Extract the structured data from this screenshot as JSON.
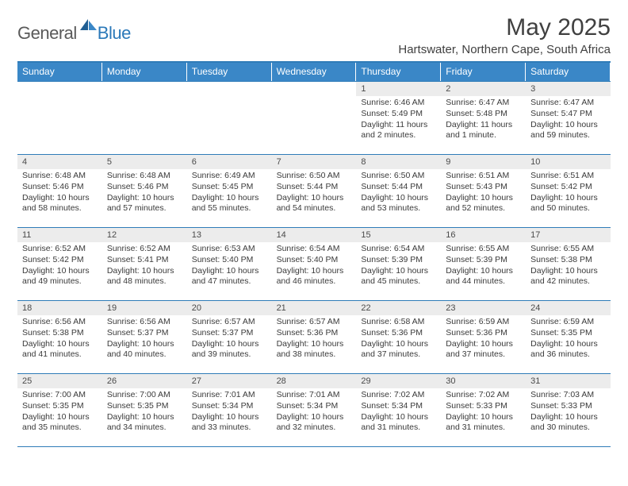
{
  "brand": {
    "general": "General",
    "blue": "Blue"
  },
  "title": "May 2025",
  "location": "Hartswater, Northern Cape, South Africa",
  "colors": {
    "header_bg": "#3a87c7",
    "rule": "#2f7cb8",
    "daynum_bg": "#ececec",
    "text": "#383838",
    "brand_gray": "#5a5a5a",
    "brand_blue": "#2b79b9"
  },
  "dow": [
    "Sunday",
    "Monday",
    "Tuesday",
    "Wednesday",
    "Thursday",
    "Friday",
    "Saturday"
  ],
  "weeks": [
    [
      null,
      null,
      null,
      null,
      {
        "n": "1",
        "sr": "6:46 AM",
        "ss": "5:49 PM",
        "dl": "11 hours and 2 minutes."
      },
      {
        "n": "2",
        "sr": "6:47 AM",
        "ss": "5:48 PM",
        "dl": "11 hours and 1 minute."
      },
      {
        "n": "3",
        "sr": "6:47 AM",
        "ss": "5:47 PM",
        "dl": "10 hours and 59 minutes."
      }
    ],
    [
      {
        "n": "4",
        "sr": "6:48 AM",
        "ss": "5:46 PM",
        "dl": "10 hours and 58 minutes."
      },
      {
        "n": "5",
        "sr": "6:48 AM",
        "ss": "5:46 PM",
        "dl": "10 hours and 57 minutes."
      },
      {
        "n": "6",
        "sr": "6:49 AM",
        "ss": "5:45 PM",
        "dl": "10 hours and 55 minutes."
      },
      {
        "n": "7",
        "sr": "6:50 AM",
        "ss": "5:44 PM",
        "dl": "10 hours and 54 minutes."
      },
      {
        "n": "8",
        "sr": "6:50 AM",
        "ss": "5:44 PM",
        "dl": "10 hours and 53 minutes."
      },
      {
        "n": "9",
        "sr": "6:51 AM",
        "ss": "5:43 PM",
        "dl": "10 hours and 52 minutes."
      },
      {
        "n": "10",
        "sr": "6:51 AM",
        "ss": "5:42 PM",
        "dl": "10 hours and 50 minutes."
      }
    ],
    [
      {
        "n": "11",
        "sr": "6:52 AM",
        "ss": "5:42 PM",
        "dl": "10 hours and 49 minutes."
      },
      {
        "n": "12",
        "sr": "6:52 AM",
        "ss": "5:41 PM",
        "dl": "10 hours and 48 minutes."
      },
      {
        "n": "13",
        "sr": "6:53 AM",
        "ss": "5:40 PM",
        "dl": "10 hours and 47 minutes."
      },
      {
        "n": "14",
        "sr": "6:54 AM",
        "ss": "5:40 PM",
        "dl": "10 hours and 46 minutes."
      },
      {
        "n": "15",
        "sr": "6:54 AM",
        "ss": "5:39 PM",
        "dl": "10 hours and 45 minutes."
      },
      {
        "n": "16",
        "sr": "6:55 AM",
        "ss": "5:39 PM",
        "dl": "10 hours and 44 minutes."
      },
      {
        "n": "17",
        "sr": "6:55 AM",
        "ss": "5:38 PM",
        "dl": "10 hours and 42 minutes."
      }
    ],
    [
      {
        "n": "18",
        "sr": "6:56 AM",
        "ss": "5:38 PM",
        "dl": "10 hours and 41 minutes."
      },
      {
        "n": "19",
        "sr": "6:56 AM",
        "ss": "5:37 PM",
        "dl": "10 hours and 40 minutes."
      },
      {
        "n": "20",
        "sr": "6:57 AM",
        "ss": "5:37 PM",
        "dl": "10 hours and 39 minutes."
      },
      {
        "n": "21",
        "sr": "6:57 AM",
        "ss": "5:36 PM",
        "dl": "10 hours and 38 minutes."
      },
      {
        "n": "22",
        "sr": "6:58 AM",
        "ss": "5:36 PM",
        "dl": "10 hours and 37 minutes."
      },
      {
        "n": "23",
        "sr": "6:59 AM",
        "ss": "5:36 PM",
        "dl": "10 hours and 37 minutes."
      },
      {
        "n": "24",
        "sr": "6:59 AM",
        "ss": "5:35 PM",
        "dl": "10 hours and 36 minutes."
      }
    ],
    [
      {
        "n": "25",
        "sr": "7:00 AM",
        "ss": "5:35 PM",
        "dl": "10 hours and 35 minutes."
      },
      {
        "n": "26",
        "sr": "7:00 AM",
        "ss": "5:35 PM",
        "dl": "10 hours and 34 minutes."
      },
      {
        "n": "27",
        "sr": "7:01 AM",
        "ss": "5:34 PM",
        "dl": "10 hours and 33 minutes."
      },
      {
        "n": "28",
        "sr": "7:01 AM",
        "ss": "5:34 PM",
        "dl": "10 hours and 32 minutes."
      },
      {
        "n": "29",
        "sr": "7:02 AM",
        "ss": "5:34 PM",
        "dl": "10 hours and 31 minutes."
      },
      {
        "n": "30",
        "sr": "7:02 AM",
        "ss": "5:33 PM",
        "dl": "10 hours and 31 minutes."
      },
      {
        "n": "31",
        "sr": "7:03 AM",
        "ss": "5:33 PM",
        "dl": "10 hours and 30 minutes."
      }
    ]
  ],
  "labels": {
    "sunrise": "Sunrise: ",
    "sunset": "Sunset: ",
    "daylight": "Daylight: "
  }
}
